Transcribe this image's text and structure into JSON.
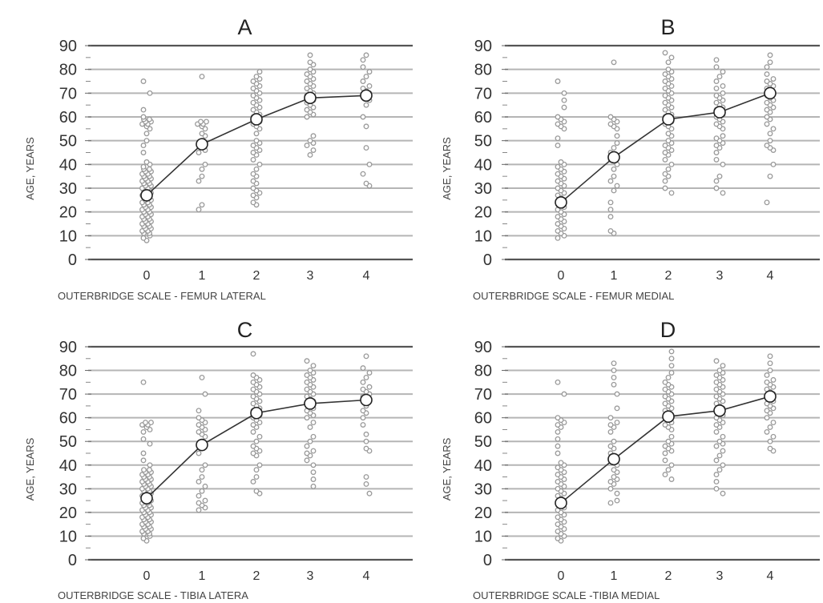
{
  "chart_data": [
    {
      "type": "scatter",
      "title": "A",
      "xlabel": "OUTERBRIDGE SCALE - FEMUR LATERAL",
      "ylabel": "AGE, YEARS",
      "x_ticks": [
        "0",
        "1",
        "2",
        "3",
        "4"
      ],
      "y_ticks": [
        "0",
        "10",
        "20",
        "30",
        "40",
        "50",
        "60",
        "70",
        "80",
        "90"
      ],
      "ylim": [
        0,
        90
      ],
      "grid": true,
      "mean_line": {
        "x": [
          0,
          1,
          2,
          3,
          4
        ],
        "y": [
          27,
          48.5,
          59,
          68,
          69
        ]
      },
      "point_groups": [
        {
          "x": 0,
          "ages": [
            8,
            9,
            10,
            11,
            11,
            12,
            12,
            13,
            13,
            14,
            14,
            15,
            15,
            16,
            16,
            17,
            17,
            18,
            18,
            19,
            19,
            20,
            20,
            21,
            21,
            22,
            22,
            23,
            23,
            24,
            24,
            25,
            25,
            26,
            26,
            27,
            27,
            28,
            28,
            29,
            29,
            30,
            30,
            31,
            31,
            32,
            32,
            33,
            33,
            34,
            34,
            35,
            35,
            36,
            36,
            37,
            37,
            38,
            38,
            39,
            40,
            41,
            45,
            48,
            50,
            53,
            55,
            56,
            57,
            57,
            58,
            58,
            59,
            59,
            60,
            63,
            70,
            75
          ]
        },
        {
          "x": 1,
          "ages": [
            21,
            23,
            33,
            35,
            38,
            40,
            45,
            46,
            48,
            50,
            52,
            53,
            55,
            56,
            57,
            57,
            58,
            58,
            77
          ]
        },
        {
          "x": 2,
          "ages": [
            23,
            24,
            26,
            27,
            28,
            29,
            30,
            32,
            33,
            35,
            36,
            38,
            40,
            42,
            44,
            45,
            46,
            47,
            48,
            49,
            50,
            53,
            55,
            56,
            57,
            58,
            59,
            60,
            61,
            62,
            63,
            64,
            65,
            66,
            67,
            68,
            69,
            70,
            71,
            72,
            73,
            74,
            75,
            76,
            77,
            79
          ]
        },
        {
          "x": 3,
          "ages": [
            44,
            46,
            48,
            49,
            50,
            52,
            60,
            61,
            62,
            63,
            64,
            65,
            66,
            67,
            68,
            69,
            70,
            71,
            72,
            73,
            74,
            75,
            76,
            77,
            78,
            79,
            80,
            82,
            83,
            86
          ]
        },
        {
          "x": 4,
          "ages": [
            31,
            32,
            36,
            40,
            47,
            56,
            60,
            65,
            67,
            68,
            69,
            70,
            71,
            72,
            73,
            75,
            77,
            79,
            81,
            84,
            86
          ]
        }
      ]
    },
    {
      "type": "scatter",
      "title": "B",
      "xlabel": "OUTERBRIDGE SCALE - FEMUR MEDIAL",
      "ylabel": "AGE, YEARS",
      "x_ticks": [
        "0",
        "1",
        "2",
        "3",
        "4"
      ],
      "y_ticks": [
        "0",
        "10",
        "20",
        "30",
        "40",
        "50",
        "60",
        "70",
        "80",
        "90"
      ],
      "ylim": [
        0,
        90
      ],
      "grid": true,
      "mean_line": {
        "x": [
          0,
          1,
          2,
          3,
          4
        ],
        "y": [
          24,
          43,
          59,
          62,
          70
        ]
      },
      "point_groups": [
        {
          "x": 0,
          "ages": [
            9,
            10,
            11,
            12,
            13,
            14,
            15,
            16,
            17,
            18,
            19,
            20,
            21,
            22,
            23,
            24,
            25,
            26,
            27,
            28,
            29,
            30,
            31,
            32,
            33,
            34,
            35,
            36,
            37,
            38,
            39,
            40,
            41,
            48,
            51,
            55,
            56,
            57,
            58,
            59,
            60,
            64,
            67,
            70,
            75
          ]
        },
        {
          "x": 1,
          "ages": [
            11,
            12,
            18,
            21,
            24,
            29,
            31,
            33,
            35,
            38,
            40,
            42,
            44,
            45,
            47,
            49,
            52,
            55,
            56,
            57,
            58,
            59,
            60,
            83
          ]
        },
        {
          "x": 2,
          "ages": [
            28,
            30,
            33,
            35,
            36,
            38,
            40,
            42,
            44,
            45,
            46,
            47,
            48,
            49,
            50,
            52,
            53,
            55,
            56,
            57,
            58,
            59,
            60,
            61,
            62,
            63,
            64,
            65,
            66,
            67,
            68,
            69,
            70,
            71,
            72,
            73,
            74,
            75,
            76,
            77,
            78,
            79,
            80,
            83,
            85,
            87
          ]
        },
        {
          "x": 3,
          "ages": [
            28,
            30,
            33,
            35,
            40,
            42,
            45,
            47,
            48,
            49,
            50,
            51,
            52,
            55,
            56,
            57,
            58,
            59,
            60,
            61,
            62,
            63,
            64,
            65,
            66,
            67,
            68,
            69,
            70,
            72,
            73,
            75,
            77,
            79,
            81,
            84
          ]
        },
        {
          "x": 4,
          "ages": [
            24,
            35,
            40,
            46,
            47,
            48,
            50,
            53,
            55,
            57,
            59,
            60,
            62,
            63,
            64,
            65,
            66,
            67,
            68,
            69,
            70,
            71,
            72,
            73,
            74,
            75,
            76,
            78,
            81,
            83,
            86
          ]
        }
      ]
    },
    {
      "type": "scatter",
      "title": "C",
      "xlabel": "OUTERBRIDGE SCALE - TIBIA LATERA",
      "ylabel": "AGE, YEARS",
      "x_ticks": [
        "0",
        "1",
        "2",
        "3",
        "4"
      ],
      "y_ticks": [
        "0",
        "10",
        "20",
        "30",
        "40",
        "50",
        "60",
        "70",
        "80",
        "90"
      ],
      "ylim": [
        0,
        90
      ],
      "grid": true,
      "mean_line": {
        "x": [
          0,
          1,
          2,
          3,
          4
        ],
        "y": [
          26,
          48.5,
          62,
          66,
          67.5
        ]
      },
      "point_groups": [
        {
          "x": 0,
          "ages": [
            8,
            9,
            10,
            11,
            11,
            12,
            12,
            13,
            13,
            14,
            14,
            15,
            15,
            16,
            16,
            17,
            17,
            18,
            18,
            19,
            19,
            20,
            20,
            21,
            21,
            22,
            22,
            23,
            23,
            24,
            24,
            25,
            25,
            26,
            26,
            27,
            27,
            28,
            28,
            29,
            29,
            30,
            30,
            31,
            31,
            32,
            32,
            33,
            33,
            34,
            34,
            35,
            35,
            36,
            36,
            37,
            37,
            38,
            38,
            40,
            42,
            45,
            49,
            51,
            54,
            55,
            56,
            57,
            57,
            58,
            58,
            75
          ]
        },
        {
          "x": 1,
          "ages": [
            21,
            22,
            23,
            24,
            25,
            27,
            29,
            31,
            33,
            35,
            38,
            40,
            45,
            48,
            50,
            52,
            53,
            54,
            55,
            56,
            57,
            58,
            59,
            60,
            63,
            70,
            77
          ]
        },
        {
          "x": 2,
          "ages": [
            28,
            29,
            33,
            35,
            38,
            40,
            44,
            45,
            46,
            47,
            48,
            50,
            52,
            54,
            56,
            57,
            58,
            59,
            60,
            61,
            62,
            63,
            64,
            65,
            66,
            67,
            68,
            69,
            70,
            71,
            72,
            73,
            74,
            75,
            76,
            77,
            78,
            87
          ]
        },
        {
          "x": 3,
          "ages": [
            31,
            34,
            37,
            40,
            42,
            44,
            45,
            46,
            48,
            50,
            52,
            56,
            58,
            60,
            61,
            62,
            63,
            64,
            65,
            66,
            67,
            68,
            69,
            70,
            71,
            72,
            73,
            74,
            75,
            76,
            77,
            78,
            79,
            80,
            82,
            84
          ]
        },
        {
          "x": 4,
          "ages": [
            28,
            32,
            35,
            46,
            47,
            50,
            53,
            57,
            60,
            62,
            63,
            65,
            67,
            68,
            69,
            70,
            71,
            72,
            73,
            75,
            77,
            79,
            81,
            86
          ]
        }
      ]
    },
    {
      "type": "scatter",
      "title": "D",
      "xlabel": "OUTERBRIDGE SCALE -TIBIA MEDIAL",
      "ylabel": "AGE, YEARS",
      "x_ticks": [
        "0",
        "1",
        "2",
        "3",
        "4"
      ],
      "y_ticks": [
        "0",
        "10",
        "20",
        "30",
        "40",
        "50",
        "60",
        "70",
        "80",
        "90"
      ],
      "ylim": [
        0,
        90
      ],
      "grid": true,
      "mean_line": {
        "x": [
          0,
          1,
          2,
          3,
          4
        ],
        "y": [
          24,
          42.5,
          60.5,
          63,
          69
        ]
      },
      "point_groups": [
        {
          "x": 0,
          "ages": [
            8,
            9,
            10,
            11,
            12,
            13,
            14,
            15,
            16,
            17,
            18,
            19,
            20,
            21,
            22,
            23,
            24,
            25,
            26,
            27,
            28,
            29,
            30,
            31,
            32,
            33,
            34,
            35,
            36,
            37,
            38,
            39,
            40,
            41,
            45,
            48,
            51,
            54,
            56,
            57,
            58,
            59,
            60,
            70,
            75
          ]
        },
        {
          "x": 1,
          "ages": [
            24,
            25,
            28,
            30,
            32,
            33,
            34,
            35,
            37,
            38,
            40,
            41,
            43,
            45,
            47,
            48,
            50,
            54,
            56,
            57,
            58,
            60,
            64,
            70,
            74,
            77,
            80,
            83
          ]
        },
        {
          "x": 2,
          "ages": [
            34,
            36,
            38,
            40,
            42,
            45,
            46,
            47,
            48,
            49,
            50,
            52,
            55,
            56,
            57,
            58,
            59,
            60,
            61,
            62,
            63,
            64,
            65,
            66,
            67,
            68,
            69,
            70,
            71,
            72,
            73,
            74,
            75,
            77,
            79,
            82,
            85,
            88
          ]
        },
        {
          "x": 3,
          "ages": [
            28,
            30,
            33,
            36,
            38,
            40,
            42,
            44,
            46,
            48,
            49,
            50,
            52,
            54,
            56,
            57,
            58,
            59,
            60,
            61,
            62,
            63,
            64,
            65,
            66,
            67,
            68,
            69,
            70,
            71,
            72,
            73,
            74,
            75,
            76,
            77,
            78,
            79,
            80,
            82,
            84
          ]
        },
        {
          "x": 4,
          "ages": [
            46,
            47,
            50,
            52,
            54,
            56,
            58,
            60,
            62,
            63,
            64,
            65,
            66,
            67,
            68,
            69,
            70,
            71,
            72,
            73,
            74,
            75,
            76,
            78,
            80,
            83,
            86
          ]
        }
      ]
    }
  ]
}
